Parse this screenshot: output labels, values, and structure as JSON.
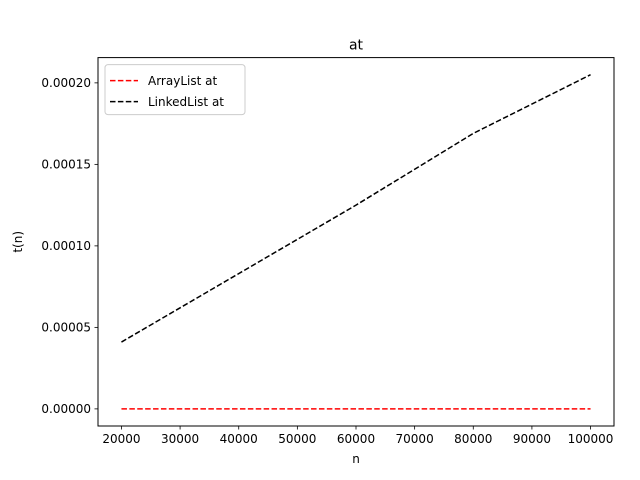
{
  "chart_data": {
    "type": "line",
    "title": "at",
    "xlabel": "n",
    "ylabel": "t(n)",
    "xlim": [
      16000,
      104000
    ],
    "ylim": [
      -1.05e-05,
      0.0002155
    ],
    "xticks": [
      20000,
      30000,
      40000,
      50000,
      60000,
      70000,
      80000,
      90000,
      100000
    ],
    "xtick_labels": [
      "20000",
      "30000",
      "40000",
      "50000",
      "60000",
      "70000",
      "80000",
      "90000",
      "100000"
    ],
    "yticks": [
      0,
      5e-05,
      0.0001,
      0.00015,
      0.0002
    ],
    "ytick_labels": [
      "0.00000",
      "0.00005",
      "0.00010",
      "0.00015",
      "0.00020"
    ],
    "grid": false,
    "legend_position": "top-left",
    "series": [
      {
        "name": "ArrayList at",
        "color": "#ff0000",
        "style": "dashed",
        "x": [
          20000,
          40000,
          60000,
          80000,
          100000
        ],
        "y": [
          0,
          0,
          0,
          0,
          0
        ]
      },
      {
        "name": "LinkedList at",
        "color": "#000000",
        "style": "dashed",
        "x": [
          20000,
          40000,
          60000,
          80000,
          100000
        ],
        "y": [
          4.1e-05,
          8.3e-05,
          0.000125,
          0.000169,
          0.000205
        ]
      }
    ]
  }
}
